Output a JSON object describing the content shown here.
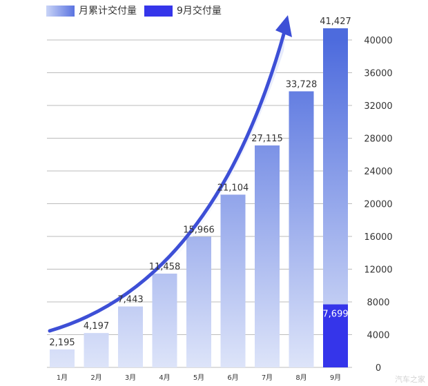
{
  "legend": [
    {
      "label": "月累计交付量",
      "color": "#7f95ee"
    },
    {
      "label": "9月交付量",
      "color": "#3535ea"
    }
  ],
  "colors": {
    "bar_top": "#4d6bdd",
    "bar_bottom": "#dde4f9",
    "highlight": "#3535ea",
    "arrow": "#3d4fd6",
    "grid": "#bbbbbb",
    "text": "#333333"
  },
  "watermark": "汽车之家",
  "chart_data": {
    "type": "bar",
    "categories": [
      "1月",
      "2月",
      "3月",
      "4月",
      "5月",
      "6月",
      "7月",
      "8月",
      "9月"
    ],
    "series": [
      {
        "name": "月累计交付量",
        "values": [
          2195,
          4197,
          7443,
          11458,
          15966,
          21104,
          27115,
          33728,
          41427
        ],
        "labels": [
          "2,195",
          "4,197",
          "7,443",
          "11,458",
          "15,966",
          "21,104",
          "27,115",
          "33,728",
          "41,427"
        ]
      },
      {
        "name": "9月交付量",
        "values": [
          null,
          null,
          null,
          null,
          null,
          null,
          null,
          null,
          7699
        ],
        "labels": [
          "",
          "",
          "",
          "",
          "",
          "",
          "",
          "",
          "7,699"
        ]
      }
    ],
    "y_ticks": [
      0,
      4000,
      8000,
      12000,
      16000,
      20000,
      24000,
      28000,
      32000,
      36000,
      40000
    ],
    "y_tick_labels": [
      "0",
      "4000",
      "8000",
      "12000",
      "16000",
      "20000",
      "24000",
      "28000",
      "32000",
      "36000",
      "40000"
    ],
    "ylim": [
      0,
      40000
    ],
    "y_axis_side": "right",
    "grid": true,
    "legend_position": "top-left",
    "trend_arrow": true
  }
}
